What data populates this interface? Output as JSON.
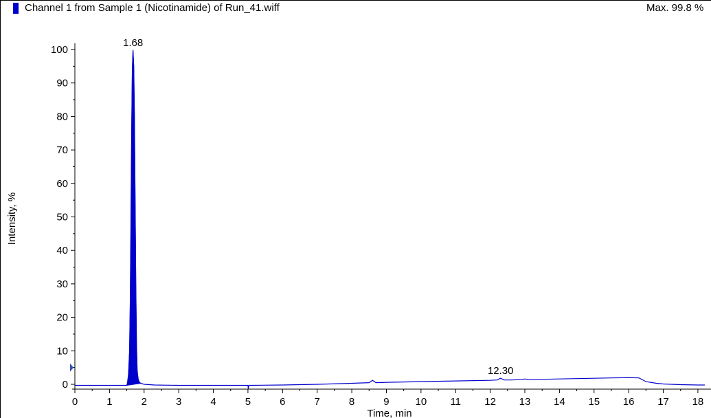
{
  "header": {
    "title": "Channel 1 from Sample 1 (Nicotinamide) of Run_41.wiff",
    "max_label": "Max. 99.8 %"
  },
  "colors": {
    "series": "#0000CC",
    "axis": "#000000"
  },
  "chart_data": {
    "type": "line",
    "title": "Channel 1 from Sample 1 (Nicotinamide) of Run_41.wiff",
    "xlabel": "Time, min",
    "ylabel": "Intensity, %",
    "xlim": [
      0,
      18.2
    ],
    "ylim": [
      -1.5,
      100
    ],
    "xticks": [
      0,
      1,
      2,
      3,
      4,
      5,
      6,
      7,
      8,
      9,
      10,
      11,
      12,
      13,
      14,
      15,
      16,
      17,
      18
    ],
    "yticks": [
      0,
      10,
      20,
      30,
      40,
      50,
      60,
      70,
      80,
      90,
      100
    ],
    "grid": false,
    "series": [
      {
        "x": [
          0,
          1.0,
          1.5,
          1.52,
          1.55,
          1.58,
          1.6,
          1.62,
          1.64,
          1.66,
          1.68,
          1.7,
          1.72,
          1.74,
          1.76,
          1.78,
          1.8,
          1.83,
          1.86,
          1.9,
          2.0,
          2.3,
          3.0,
          4.0,
          5.0,
          5.01,
          5.03,
          6.0,
          7.0,
          8.0,
          8.5,
          8.6,
          8.7,
          9.0,
          10.0,
          11.0,
          12.0,
          12.2,
          12.3,
          12.4,
          12.6,
          12.9,
          13.0,
          13.1,
          14.0,
          14.5,
          15.0,
          15.5,
          16.0,
          16.3,
          16.5,
          16.8,
          17.0,
          17.5,
          18.0,
          18.2
        ],
        "y": [
          -0.3,
          -0.3,
          -0.3,
          0.5,
          3.0,
          10.0,
          25.0,
          48.0,
          75.0,
          94.0,
          99.8,
          95.0,
          80.0,
          55.0,
          30.0,
          12.0,
          4.0,
          1.5,
          0.7,
          0.3,
          0.0,
          -0.2,
          -0.3,
          -0.3,
          -0.3,
          -1.3,
          -0.3,
          -0.2,
          0.0,
          0.3,
          0.5,
          1.2,
          0.5,
          0.6,
          0.8,
          1.0,
          1.2,
          1.3,
          1.8,
          1.3,
          1.3,
          1.4,
          1.6,
          1.4,
          1.6,
          1.7,
          1.8,
          1.9,
          2.0,
          1.9,
          0.8,
          0.3,
          0.1,
          -0.1,
          -0.2,
          -0.2
        ]
      }
    ],
    "annotations": [
      {
        "x": 1.68,
        "y": 99.8,
        "text": "1.68"
      },
      {
        "x": 12.3,
        "y": 1.8,
        "text": "12.30"
      }
    ]
  }
}
